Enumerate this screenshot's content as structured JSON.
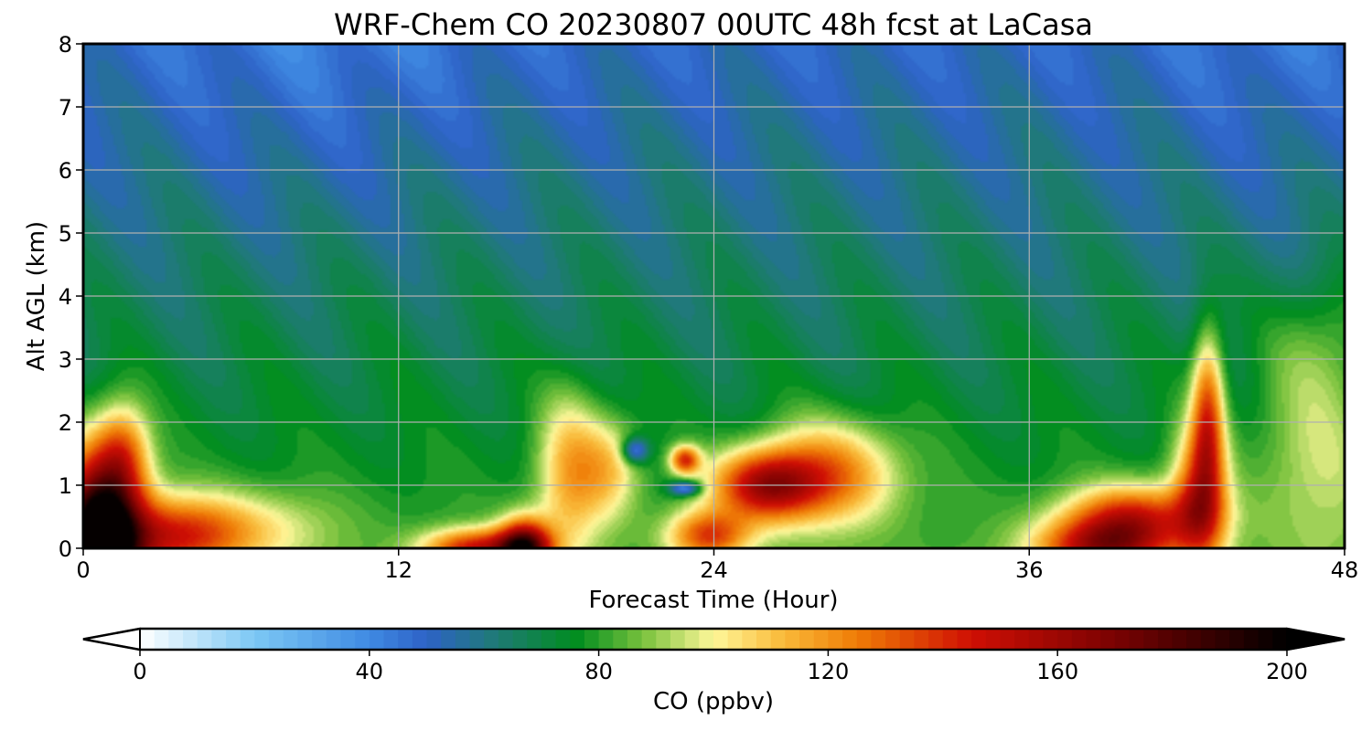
{
  "chart_data": {
    "type": "heatmap",
    "title": "WRF-Chem CO  20230807 00UTC 48h fcst at LaCasa",
    "xlabel": "Forecast Time (Hour)",
    "ylabel": "Alt AGL (km)",
    "xlim": [
      0,
      48
    ],
    "ylim": [
      0,
      8
    ],
    "xticks": [
      0,
      12,
      24,
      36,
      48
    ],
    "yticks": [
      0,
      1,
      2,
      3,
      4,
      5,
      6,
      7,
      8
    ],
    "grid": true,
    "colorbar": {
      "label": "CO  (ppbv)",
      "range": [
        0,
        200
      ],
      "ticks": [
        0,
        40,
        80,
        120,
        160,
        200
      ],
      "extend": "both",
      "levels": 80,
      "colors": [
        {
          "value": 0,
          "color": "#ffffff"
        },
        {
          "value": 20,
          "color": "#7cc8f4"
        },
        {
          "value": 40,
          "color": "#3f8ae3"
        },
        {
          "value": 50,
          "color": "#2e62c6"
        },
        {
          "value": 62,
          "color": "#1f7a76"
        },
        {
          "value": 76,
          "color": "#008d1f"
        },
        {
          "value": 88,
          "color": "#7cc33e"
        },
        {
          "value": 100,
          "color": "#fff79a"
        },
        {
          "value": 112,
          "color": "#f9ba3a"
        },
        {
          "value": 125,
          "color": "#ef7c06"
        },
        {
          "value": 145,
          "color": "#cf0f04"
        },
        {
          "value": 170,
          "color": "#7a0202"
        },
        {
          "value": 200,
          "color": "#000000"
        }
      ]
    }
  }
}
